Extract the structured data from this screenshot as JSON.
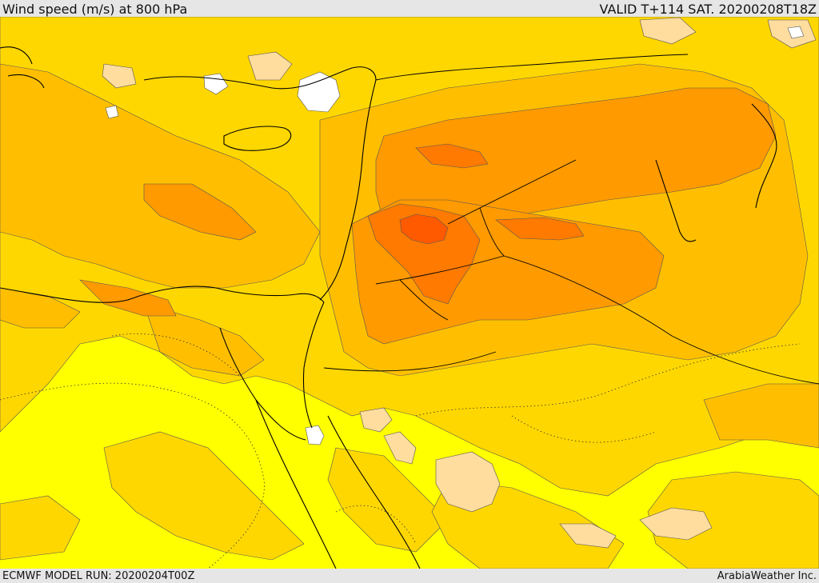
{
  "header": {
    "title": "Wind speed (m/s) at 800 hPa",
    "valid": "VALID T+114 SAT. 20200208T18Z"
  },
  "footer": {
    "model_run": "ECMWF MODEL RUN: 20200204T00Z",
    "credit": "ArabiaWeather Inc."
  },
  "colors": {
    "background": "#ffff00",
    "band_1": "#ffd700",
    "band_2": "#ffbf00",
    "band_3": "#ff9a00",
    "band_4": "#ff7a00",
    "band_5": "#ff5a00",
    "calm": "#ffdd9f",
    "very_calm": "#ffffff",
    "coastline": "#000000"
  }
}
